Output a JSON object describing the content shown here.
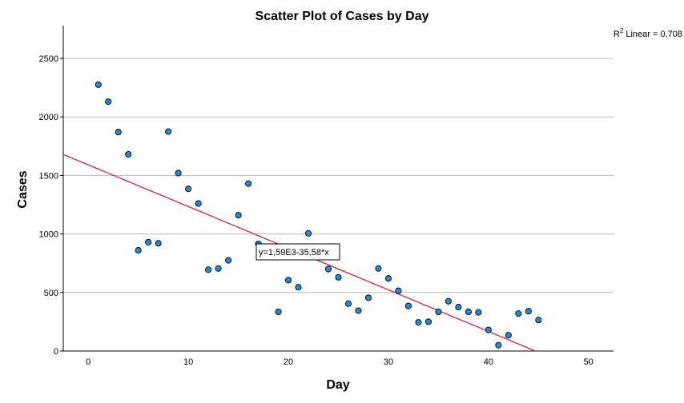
{
  "chart_data": {
    "type": "scatter",
    "title": "Scatter Plot of Cases by Day",
    "xlabel": "Day",
    "ylabel": "Cases",
    "xlim": [
      -2.5,
      52.5
    ],
    "ylim": [
      0,
      2780
    ],
    "xticks": [
      0,
      10,
      20,
      30,
      40,
      50
    ],
    "yticks": [
      0,
      500,
      1000,
      1500,
      2000,
      2500
    ],
    "grid": "horizontal",
    "points": [
      {
        "x": 1,
        "y": 2275
      },
      {
        "x": 2,
        "y": 2130
      },
      {
        "x": 3,
        "y": 1870
      },
      {
        "x": 4,
        "y": 1680
      },
      {
        "x": 5,
        "y": 860
      },
      {
        "x": 6,
        "y": 930
      },
      {
        "x": 7,
        "y": 920
      },
      {
        "x": 8,
        "y": 1875
      },
      {
        "x": 9,
        "y": 1520
      },
      {
        "x": 10,
        "y": 1385
      },
      {
        "x": 11,
        "y": 1260
      },
      {
        "x": 12,
        "y": 695
      },
      {
        "x": 13,
        "y": 705
      },
      {
        "x": 14,
        "y": 775
      },
      {
        "x": 15,
        "y": 1160
      },
      {
        "x": 16,
        "y": 1430
      },
      {
        "x": 17,
        "y": 915
      },
      {
        "x": 19,
        "y": 335
      },
      {
        "x": 20,
        "y": 605
      },
      {
        "x": 21,
        "y": 545
      },
      {
        "x": 22,
        "y": 1005
      },
      {
        "x": 24,
        "y": 700
      },
      {
        "x": 25,
        "y": 630
      },
      {
        "x": 26,
        "y": 405
      },
      {
        "x": 27,
        "y": 345
      },
      {
        "x": 28,
        "y": 455
      },
      {
        "x": 29,
        "y": 705
      },
      {
        "x": 30,
        "y": 620
      },
      {
        "x": 31,
        "y": 515
      },
      {
        "x": 32,
        "y": 385
      },
      {
        "x": 33,
        "y": 245
      },
      {
        "x": 34,
        "y": 250
      },
      {
        "x": 35,
        "y": 335
      },
      {
        "x": 36,
        "y": 425
      },
      {
        "x": 37,
        "y": 375
      },
      {
        "x": 38,
        "y": 335
      },
      {
        "x": 39,
        "y": 330
      },
      {
        "x": 40,
        "y": 180
      },
      {
        "x": 41,
        "y": 50
      },
      {
        "x": 42,
        "y": 135
      },
      {
        "x": 43,
        "y": 320
      },
      {
        "x": 44,
        "y": 340
      },
      {
        "x": 45,
        "y": 265
      }
    ],
    "fit_line": {
      "intercept": 1590,
      "slope": -35.58
    },
    "fit_label": "y=1,59E3-35,58*x",
    "r2_label": "R",
    "r2_sup": "2",
    "r2_rest": " Linear = 0,708",
    "colors": {
      "marker_fill": "#1f8dd6",
      "marker_stroke": "#000000",
      "fit_line": "#d5213f",
      "grid": "#bdbdbd",
      "axis": "#000000"
    }
  }
}
